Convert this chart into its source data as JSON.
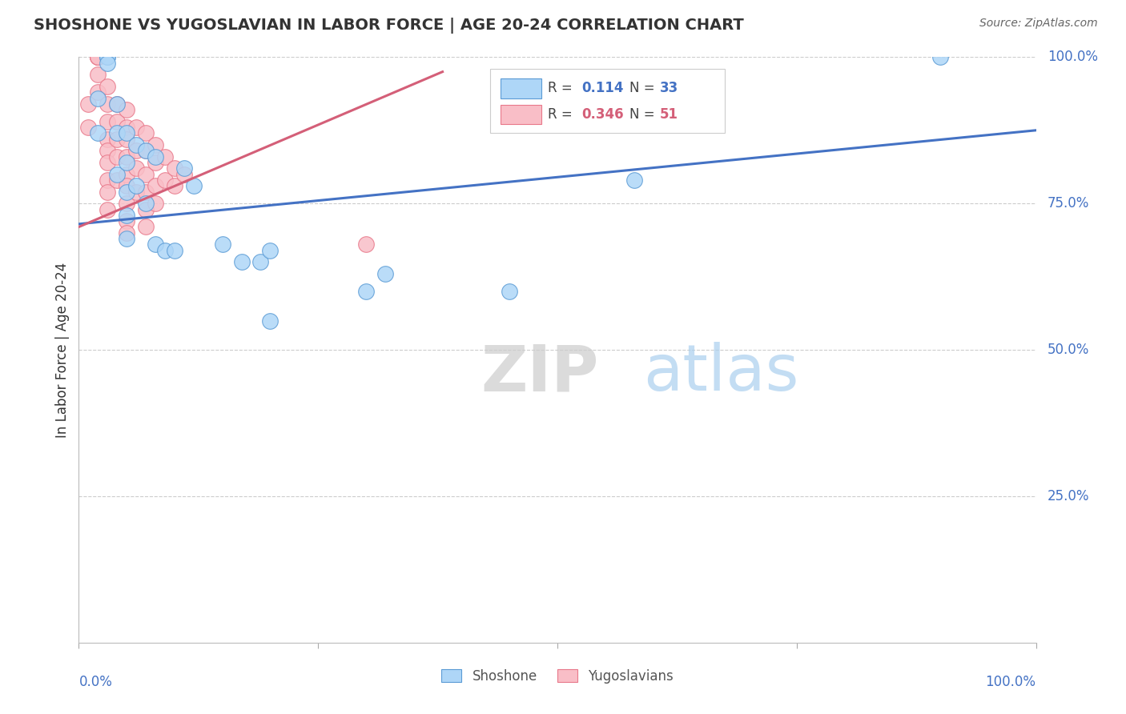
{
  "title": "SHOSHONE VS YUGOSLAVIAN IN LABOR FORCE | AGE 20-24 CORRELATION CHART",
  "source": "Source: ZipAtlas.com",
  "ylabel": "In Labor Force | Age 20-24",
  "watermark_zip": "ZIP",
  "watermark_atlas": "atlas",
  "legend_blue_r": "0.114",
  "legend_blue_n": "33",
  "legend_pink_r": "0.346",
  "legend_pink_n": "51",
  "legend_label_blue": "Shoshone",
  "legend_label_pink": "Yugoslavians",
  "xlim": [
    0.0,
    1.0
  ],
  "ylim": [
    0.0,
    1.0
  ],
  "blue_color": "#AED6F7",
  "pink_color": "#F9BEC7",
  "blue_edge_color": "#5B9BD5",
  "pink_edge_color": "#E8788A",
  "blue_line_color": "#4472C4",
  "pink_line_color": "#D45F78",
  "axis_label_color": "#4472C4",
  "grid_color": "#CCCCCC",
  "title_color": "#333333",
  "source_color": "#666666",
  "ylabel_color": "#333333",
  "shoshone_x": [
    0.02,
    0.02,
    0.03,
    0.03,
    0.03,
    0.04,
    0.04,
    0.04,
    0.05,
    0.05,
    0.05,
    0.05,
    0.05,
    0.06,
    0.06,
    0.07,
    0.07,
    0.08,
    0.08,
    0.09,
    0.1,
    0.11,
    0.12,
    0.15,
    0.17,
    0.19,
    0.2,
    0.2,
    0.3,
    0.32,
    0.45,
    0.58,
    0.9
  ],
  "shoshone_y": [
    0.93,
    0.87,
    1.0,
    1.0,
    0.99,
    0.92,
    0.87,
    0.8,
    0.87,
    0.82,
    0.77,
    0.73,
    0.69,
    0.85,
    0.78,
    0.84,
    0.75,
    0.83,
    0.68,
    0.67,
    0.67,
    0.81,
    0.78,
    0.68,
    0.65,
    0.65,
    0.67,
    0.55,
    0.6,
    0.63,
    0.6,
    0.79,
    1.0
  ],
  "yugoslav_x": [
    0.01,
    0.01,
    0.02,
    0.02,
    0.02,
    0.02,
    0.02,
    0.02,
    0.03,
    0.03,
    0.03,
    0.03,
    0.03,
    0.03,
    0.03,
    0.03,
    0.03,
    0.04,
    0.04,
    0.04,
    0.04,
    0.04,
    0.05,
    0.05,
    0.05,
    0.05,
    0.05,
    0.05,
    0.05,
    0.05,
    0.05,
    0.06,
    0.06,
    0.06,
    0.06,
    0.07,
    0.07,
    0.07,
    0.07,
    0.07,
    0.07,
    0.08,
    0.08,
    0.08,
    0.08,
    0.09,
    0.09,
    0.1,
    0.1,
    0.11,
    0.3
  ],
  "yugoslav_y": [
    0.92,
    0.88,
    1.0,
    1.0,
    1.0,
    1.0,
    0.97,
    0.94,
    0.95,
    0.92,
    0.89,
    0.86,
    0.84,
    0.82,
    0.79,
    0.77,
    0.74,
    0.92,
    0.89,
    0.86,
    0.83,
    0.79,
    0.91,
    0.88,
    0.86,
    0.83,
    0.8,
    0.78,
    0.75,
    0.72,
    0.7,
    0.88,
    0.84,
    0.81,
    0.77,
    0.87,
    0.84,
    0.8,
    0.77,
    0.74,
    0.71,
    0.85,
    0.82,
    0.78,
    0.75,
    0.83,
    0.79,
    0.81,
    0.78,
    0.8,
    0.68
  ],
  "blue_trend_x": [
    0.0,
    1.0
  ],
  "blue_trend_y": [
    0.715,
    0.875
  ],
  "pink_trend_x": [
    0.0,
    0.38
  ],
  "pink_trend_y": [
    0.71,
    0.975
  ]
}
